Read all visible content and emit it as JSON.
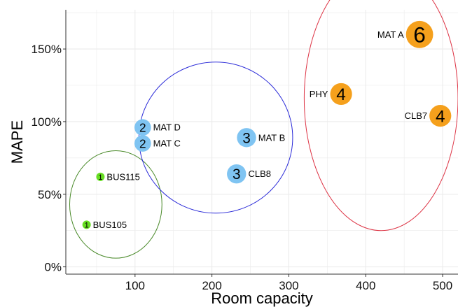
{
  "chart_data": {
    "type": "scatter",
    "title": "",
    "xlabel": "Room capacity",
    "ylabel": "MAPE",
    "xlim": [
      10,
      520
    ],
    "ylim": [
      -0.05,
      1.77
    ],
    "x_ticks": [
      100,
      200,
      300,
      400,
      500
    ],
    "x_tick_labels": [
      "100",
      "200",
      "300",
      "400",
      "500"
    ],
    "y_ticks": [
      0,
      0.5,
      1.0,
      1.5
    ],
    "y_tick_labels": [
      "0%",
      "50%",
      "100%",
      "150%"
    ],
    "grid": true,
    "legend": "none",
    "points": [
      {
        "label": "BUS115",
        "x": 55,
        "y": 0.62,
        "value": "1",
        "group": "green"
      },
      {
        "label": "BUS105",
        "x": 37,
        "y": 0.29,
        "value": "1",
        "group": "green"
      },
      {
        "label": "MAT D",
        "x": 110,
        "y": 0.96,
        "value": "2",
        "group": "blue"
      },
      {
        "label": "MAT C",
        "x": 110,
        "y": 0.85,
        "value": "2",
        "group": "blue"
      },
      {
        "label": "MAT B",
        "x": 245,
        "y": 0.89,
        "value": "3",
        "group": "blue"
      },
      {
        "label": "CLB8",
        "x": 232,
        "y": 0.64,
        "value": "3",
        "group": "blue"
      },
      {
        "label": "MAT A",
        "x": 470,
        "y": 1.6,
        "value": "6",
        "group": "orange"
      },
      {
        "label": "PHY",
        "x": 368,
        "y": 1.19,
        "value": "4",
        "group": "orange"
      },
      {
        "label": "CLB7",
        "x": 497,
        "y": 1.04,
        "value": "4",
        "group": "orange"
      }
    ],
    "ellipses": [
      {
        "group": "green",
        "cx": 75,
        "cy": 0.43,
        "rx": 60,
        "ry": 0.37
      },
      {
        "group": "blue",
        "cx": 205,
        "cy": 0.89,
        "rx": 100,
        "ry": 0.52
      },
      {
        "group": "red",
        "cx": 420,
        "cy": 1.16,
        "rx": 100,
        "ry": 0.91
      }
    ],
    "colors": {
      "green": "#66dd22",
      "blue": "#7fc4f2",
      "orange": "#f5a01c",
      "green_ellipse": "#4a8a2a",
      "blue_ellipse": "#2a2ad8",
      "red_ellipse": "#dd3344",
      "grid": "#ebebeb",
      "axis": "#333333"
    }
  }
}
